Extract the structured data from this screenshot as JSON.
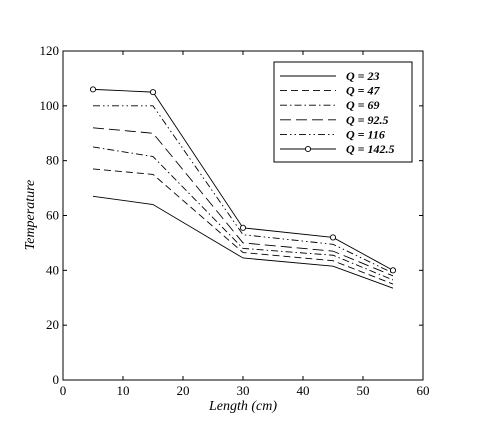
{
  "chart_data": {
    "type": "line",
    "xlabel": "Length (cm)",
    "ylabel": "Temperature",
    "xlim": [
      0,
      60
    ],
    "ylim": [
      0,
      120
    ],
    "xticks": [
      0,
      10,
      20,
      30,
      40,
      50,
      60
    ],
    "yticks": [
      0,
      20,
      40,
      60,
      80,
      100,
      120
    ],
    "grid": false,
    "legend_position": "top-right",
    "x": [
      5,
      15,
      30,
      45,
      55
    ],
    "series": [
      {
        "name": "Q = 23",
        "style": "solid",
        "marker": "none",
        "color": "#000000",
        "values": [
          67,
          64,
          44.5,
          41.5,
          33.5
        ]
      },
      {
        "name": "Q = 47",
        "style": "dashed",
        "marker": "none",
        "color": "#000000",
        "values": [
          77,
          75,
          46.5,
          43.5,
          35
        ]
      },
      {
        "name": "Q = 69",
        "style": "dash-dot",
        "marker": "none",
        "color": "#000000",
        "values": [
          85,
          81.5,
          48,
          45.5,
          36.5
        ]
      },
      {
        "name": "Q = 92.5",
        "style": "long-dash",
        "marker": "none",
        "color": "#000000",
        "values": [
          92,
          90,
          50,
          47,
          38
        ]
      },
      {
        "name": "Q = 116",
        "style": "dash-dot-dot",
        "marker": "none",
        "color": "#000000",
        "values": [
          100,
          100,
          53,
          49.5,
          39
        ]
      },
      {
        "name": "Q = 142.5",
        "style": "solid",
        "marker": "circle",
        "color": "#000000",
        "values": [
          106,
          105,
          55.5,
          52,
          40
        ]
      }
    ]
  }
}
